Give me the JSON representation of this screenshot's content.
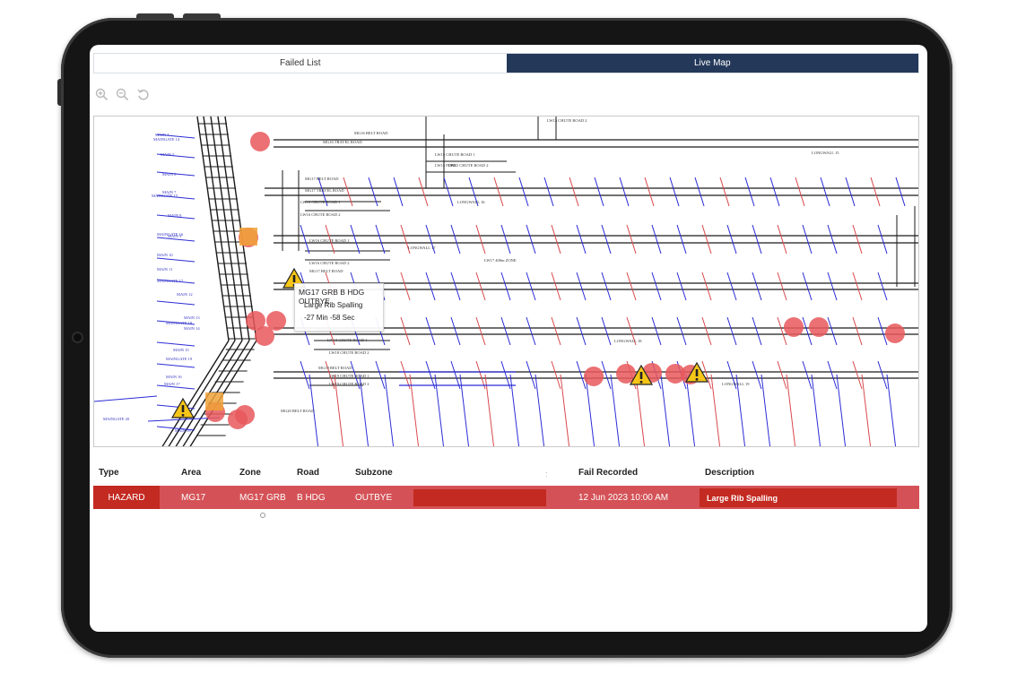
{
  "tabs": [
    {
      "label": "Failed List",
      "active": false
    },
    {
      "label": "Live Map",
      "active": true
    }
  ],
  "map_controls": [
    {
      "icon": "zoom-in-icon"
    },
    {
      "icon": "zoom-out-icon"
    },
    {
      "icon": "reset-icon"
    }
  ],
  "map": {
    "road_labels": [
      "MG16 BELT ROAD",
      "MG16 TRAVEL ROAD",
      "LW15 CHUTE ROAD 1",
      "LW15 CHUTE ROAD 2",
      "LW15 CHUTE ROAD 2",
      "LONGWALL 15",
      "LW15 FDRK",
      "MG17 BELT ROAD",
      "MG17 TRAVEL ROAD",
      "LW16 CHUTE ROAD 1",
      "LW16 CHUTE ROAD 2",
      "LONGWALL 16",
      "LW16 CHUTE ROAD 1",
      "LW16 CHUTE ROAD 2",
      "MG17 BELT ROAD",
      "LONGWALL 17",
      "LW17 400m ZONE",
      "MG18 BELT ROAD",
      "LW18 CHUTE ROAD 1",
      "LW18 CHUTE ROAD 2",
      "LONGWALL 18",
      "MG19 BELT ROAD",
      "LW19 CHUTE ROAD 1",
      "LW19 CHUTE ROAD 2",
      "LONGWALL 19",
      "MG20 BELT ROAD",
      "MAINGATE 14",
      "MAINGATE 15",
      "MAINGATE 16",
      "MAINGATE 17",
      "MAINGATE 18",
      "MAINGATE 19",
      "MAINGATE 20",
      "MAIN 4",
      "MAIN 5",
      "MAIN 6",
      "MAIN 7",
      "MAIN 8",
      "MAIN 9",
      "MAIN 10",
      "MAIN 11",
      "MAIN 12",
      "MAIN 13",
      "MAIN 14",
      "MAIN 15",
      "MAIN 16",
      "MAIN 17",
      "MAIN 18"
    ],
    "tooltip": {
      "title": "MG17 GRB B HDG OUTBYE",
      "description": "Large Rib Spalling",
      "elapsed": "-27 Min -58 Sec"
    },
    "marker_colors": {
      "red_dot": "#e8585c",
      "orange_square": "#f0a23a",
      "warning": "#f5c518"
    }
  },
  "table": {
    "headers": {
      "type": "Type",
      "area": "Area",
      "zone": "Zone",
      "road": "Road",
      "subzone": "Subzone",
      "fail_recorded": "Fail Recorded",
      "description": "Description"
    },
    "rows": [
      {
        "type": "HAZARD",
        "area": "MG17",
        "zone": "MG17 GRB",
        "road": "B HDG",
        "subzone": "OUTBYE",
        "fail_recorded": "12 Jun 2023 10:00 AM",
        "description": "Large Rib Spalling"
      }
    ]
  },
  "colors": {
    "accent": "#24395a",
    "hazard_row": "#d45257",
    "hazard_cell": "#c32a21"
  }
}
